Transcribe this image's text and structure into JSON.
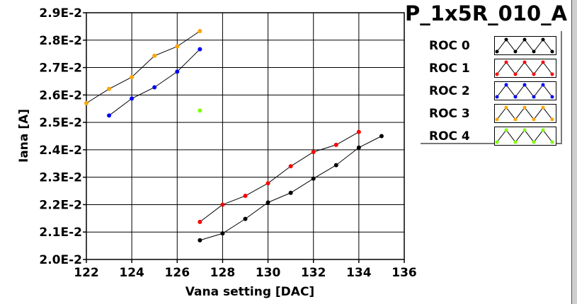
{
  "chart_data": {
    "type": "line",
    "title": "P_1x5R_010_A",
    "xlabel": "Vana setting [DAC]",
    "ylabel": "Iana [A]",
    "xlim": [
      122,
      136
    ],
    "ylim": [
      0.02,
      0.029
    ],
    "xticks": [
      "122",
      "124",
      "126",
      "128",
      "130",
      "132",
      "134",
      "136"
    ],
    "yticks": [
      "2.0E-2",
      "2.1E-2",
      "2.2E-2",
      "2.3E-2",
      "2.4E-2",
      "2.5E-2",
      "2.6E-2",
      "2.7E-2",
      "2.8E-2",
      "2.9E-2"
    ],
    "grid": true,
    "legend_position": "right",
    "series": [
      {
        "name": "ROC 0",
        "color": "#000000",
        "x": [
          127,
          128,
          129,
          130,
          131,
          132,
          133,
          134,
          135
        ],
        "y": [
          0.0207,
          0.02095,
          0.02148,
          0.02208,
          0.02243,
          0.02295,
          0.02344,
          0.02408,
          0.0245
        ]
      },
      {
        "name": "ROC 1",
        "color": "#ff0000",
        "x": [
          127,
          128,
          129,
          130,
          131,
          132,
          133,
          134
        ],
        "y": [
          0.02137,
          0.022,
          0.02232,
          0.02278,
          0.0234,
          0.02392,
          0.02418,
          0.02465
        ]
      },
      {
        "name": "ROC 2",
        "color": "#0000ff",
        "x": [
          123,
          124,
          125,
          126,
          127
        ],
        "y": [
          0.02525,
          0.02587,
          0.02628,
          0.02685,
          0.02767
        ]
      },
      {
        "name": "ROC 3",
        "color": "#ffa500",
        "x": [
          122,
          123,
          124,
          125,
          126,
          127
        ],
        "y": [
          0.0257,
          0.02622,
          0.02665,
          0.02743,
          0.02777,
          0.02833
        ]
      },
      {
        "name": "ROC 4",
        "color": "#7fff00",
        "x": [
          127
        ],
        "y": [
          0.02543
        ]
      }
    ]
  }
}
